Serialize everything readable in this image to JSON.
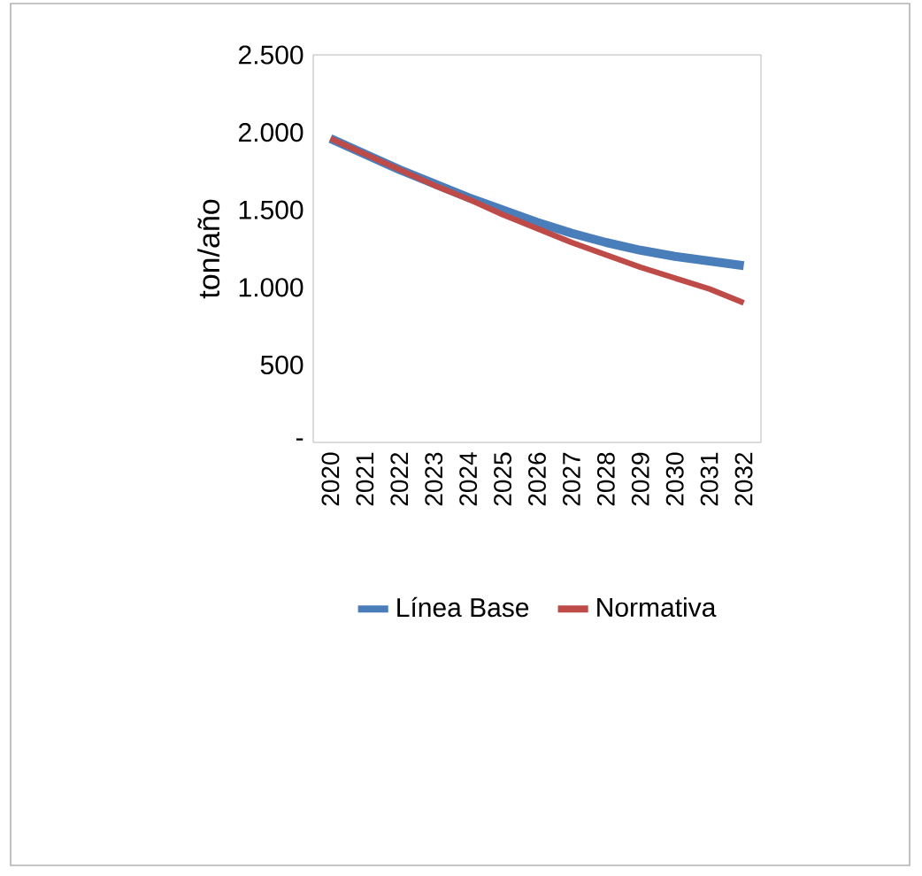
{
  "chart_data": {
    "type": "line",
    "ylabel": "ton/año",
    "categories": [
      "2020",
      "2021",
      "2022",
      "2023",
      "2024",
      "2025",
      "2026",
      "2027",
      "2028",
      "2029",
      "2030",
      "2031",
      "2032"
    ],
    "series": [
      {
        "name": "Línea Base",
        "color": "#4a7ebb",
        "values": [
          1960,
          1860,
          1760,
          1670,
          1580,
          1500,
          1420,
          1350,
          1290,
          1240,
          1200,
          1170,
          1140
        ]
      },
      {
        "name": "Normativa",
        "color": "#be4b48",
        "values": [
          1960,
          1860,
          1760,
          1660,
          1570,
          1470,
          1380,
          1290,
          1210,
          1130,
          1060,
          990,
          900
        ]
      }
    ],
    "ylim": [
      0,
      2500
    ],
    "yticks": [
      {
        "value": 0,
        "label": "-"
      },
      {
        "value": 500,
        "label": "500"
      },
      {
        "value": 1000,
        "label": "1.000"
      },
      {
        "value": 1500,
        "label": "1.500"
      },
      {
        "value": 2000,
        "label": "2.000"
      },
      {
        "value": 2500,
        "label": "2.500"
      }
    ],
    "legend": "bottom",
    "marker": "none",
    "line_style": "solid",
    "grid": false
  }
}
